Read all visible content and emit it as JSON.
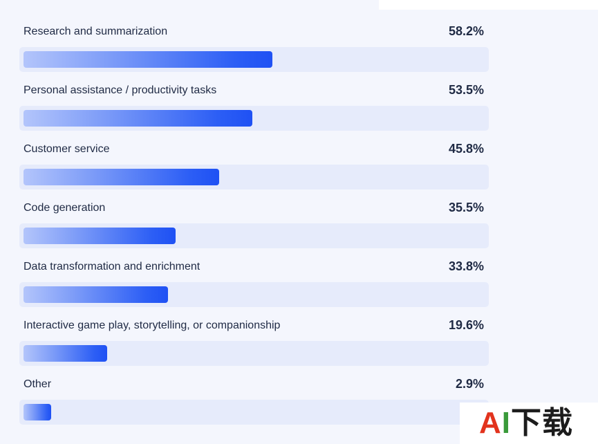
{
  "chart_data": {
    "type": "bar",
    "orientation": "horizontal",
    "categories": [
      "Research and summarization",
      "Personal assistance / productivity tasks",
      "Customer service",
      "Code generation",
      "Data transformation and enrichment",
      "Interactive game play, storytelling, or companionship",
      "Other"
    ],
    "values": [
      58.2,
      53.5,
      45.8,
      35.5,
      33.8,
      19.6,
      2.9
    ],
    "value_labels": [
      "58.2%",
      "53.5%",
      "45.8%",
      "35.5%",
      "33.8%",
      "19.6%",
      "2.9%"
    ],
    "unit": "%",
    "title": "",
    "xlabel": "",
    "ylabel": "",
    "colors": {
      "bar_start": "#b3c5fb",
      "bar_end": "#1f51f4",
      "track": "#e6ebfb",
      "text": "#1f2a44"
    }
  },
  "watermark": {
    "text": "AI下载",
    "a": "A",
    "i": "I",
    "cn": "下载"
  }
}
